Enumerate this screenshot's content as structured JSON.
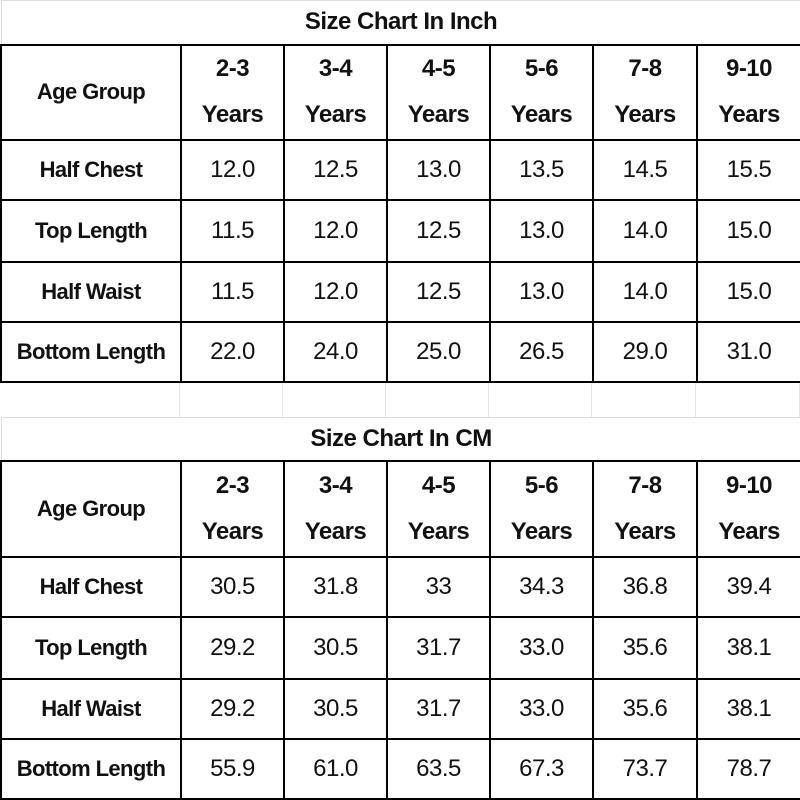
{
  "tables": [
    {
      "title": "Size Chart In Inch",
      "header": [
        "Age Group",
        "2-3 Years",
        "3-4 Years",
        "4-5 Years",
        "5-6 Years",
        "7-8 Years",
        "9-10 Years"
      ],
      "rows": [
        [
          "Half Chest",
          "12.0",
          "12.5",
          "13.0",
          "13.5",
          "14.5",
          "15.5"
        ],
        [
          "Top Length",
          "11.5",
          "12.0",
          "12.5",
          "13.0",
          "14.0",
          "15.0"
        ],
        [
          "Half Waist",
          "11.5",
          "12.0",
          "12.5",
          "13.0",
          "14.0",
          "15.0"
        ],
        [
          "Bottom Length",
          "22.0",
          "24.0",
          "25.0",
          "26.5",
          "29.0",
          "31.0"
        ]
      ]
    },
    {
      "title": "Size Chart In CM",
      "header": [
        "Age Group",
        "2-3 Years",
        "3-4 Years",
        "4-5 Years",
        "5-6 Years",
        "7-8 Years",
        "9-10 Years"
      ],
      "rows": [
        [
          "Half Chest",
          "30.5",
          "31.8",
          "33",
          "34.3",
          "36.8",
          "39.4"
        ],
        [
          "Top Length",
          "29.2",
          "30.5",
          "31.7",
          "33.0",
          "35.6",
          "38.1"
        ],
        [
          "Half Waist",
          "29.2",
          "30.5",
          "31.7",
          "33.0",
          "35.6",
          "38.1"
        ],
        [
          "Bottom Length",
          "55.9",
          "61.0",
          "63.5",
          "67.3",
          "73.7",
          "78.7"
        ]
      ]
    }
  ]
}
